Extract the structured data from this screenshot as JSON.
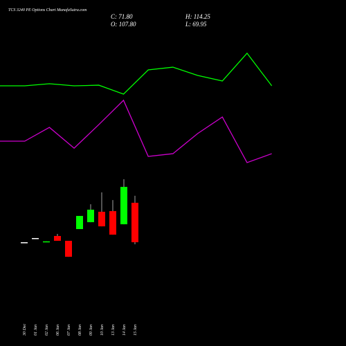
{
  "chart_data": [
    {
      "type": "candlestick",
      "title": "TCS 3240 PE Options Chart MunafaSutra.com",
      "header_labels": {
        "close": "C: 71.80",
        "open": "O: 107.80",
        "high": "H: 114.25",
        "low": "L: 69.95"
      },
      "categories": [
        "30 Dec",
        "01 Jan",
        "02 Jan",
        "06 Jan",
        "07 Jan",
        "08 Jan",
        "09 Jan",
        "10 Jan",
        "13 Jan",
        "14 Jan",
        "15 Jan"
      ],
      "open": [
        71.8,
        75.6,
        72.2,
        77.5,
        73.1,
        83.8,
        90.1,
        99.6,
        100.2,
        88.2,
        107.8
      ],
      "high": [
        71.8,
        75.6,
        72.6,
        79.4,
        73.1,
        95.8,
        106.5,
        117.3,
        110.3,
        129.3,
        114.25
      ],
      "low": [
        71.8,
        75.6,
        72.2,
        73.1,
        58.5,
        83.8,
        90.1,
        86.3,
        78.7,
        88.2,
        69.95
      ],
      "close": [
        71.8,
        75.6,
        72.6,
        73.1,
        58.5,
        95.8,
        101.5,
        86.3,
        78.7,
        122.3,
        71.8
      ],
      "colors": {
        "up": "#00ff00",
        "down": "#ff0000",
        "flat": "#ffffff"
      },
      "ylim": [
        -4,
        135
      ]
    },
    {
      "type": "line",
      "categories": [
        null,
        null,
        null,
        null,
        null,
        null,
        null,
        null,
        null,
        null,
        null,
        null
      ],
      "series": [
        {
          "color": "#00ff00",
          "values": [
            66.3,
            66.3,
            67.9,
            66.3,
            66.8,
            60.0,
            78.4,
            80.5,
            74.2,
            70.0,
            91.1,
            66.3
          ]
        },
        {
          "color": "#cc00cc",
          "values": [
            24.2,
            24.2,
            34.7,
            18.9,
            36.8,
            55.3,
            12.6,
            14.7,
            30.0,
            42.6,
            7.9,
            14.7
          ]
        }
      ],
      "ylim": [
        0,
        100
      ]
    }
  ]
}
